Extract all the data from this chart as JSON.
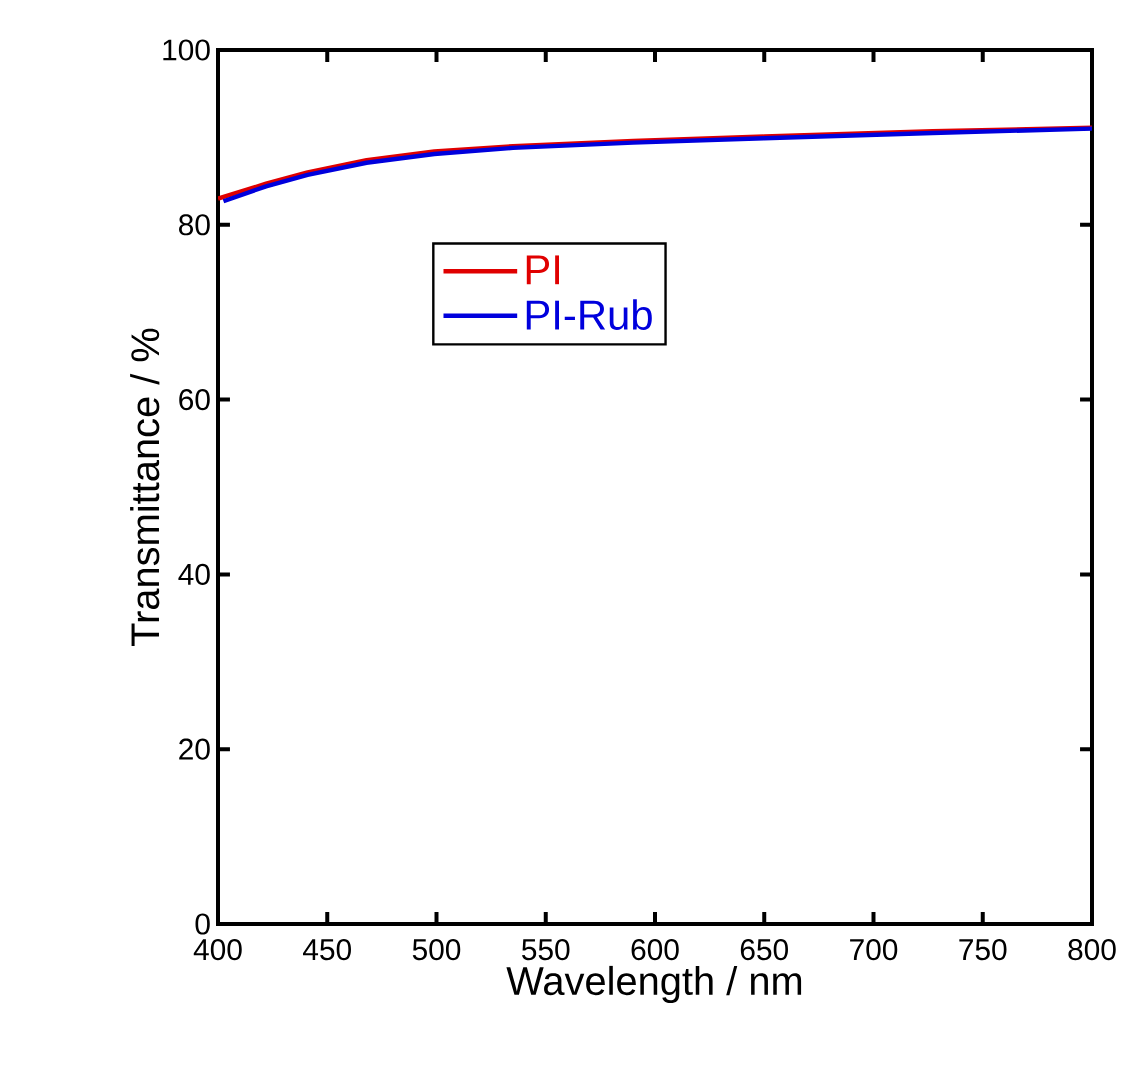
{
  "chart_data": {
    "type": "line",
    "xlabel": "Wavelength / nm",
    "ylabel": "Transmittance / %",
    "xlim": [
      400,
      800
    ],
    "ylim": [
      0,
      100
    ],
    "xticks": [
      400,
      450,
      500,
      550,
      600,
      650,
      700,
      750,
      800
    ],
    "yticks": [
      0,
      20,
      40,
      60,
      80,
      100
    ],
    "grid": false,
    "legend": "top left",
    "series": [
      {
        "name": "PI",
        "color": "#e00000",
        "x": [
          400,
          422,
          441,
          468,
          499,
          535,
          590,
          650,
          727,
          800
        ],
        "values": [
          83.0,
          84.7,
          86.0,
          87.4,
          88.4,
          89.0,
          89.6,
          90.1,
          90.7,
          91.1
        ]
      },
      {
        "name": "PI-Rub",
        "color": "#0000dd",
        "x": [
          402.5,
          422,
          441,
          468,
          499,
          535,
          590,
          650,
          727,
          800
        ],
        "values": [
          82.7,
          84.4,
          85.7,
          87.1,
          88.1,
          88.8,
          89.4,
          89.9,
          90.5,
          91.0
        ]
      }
    ]
  }
}
